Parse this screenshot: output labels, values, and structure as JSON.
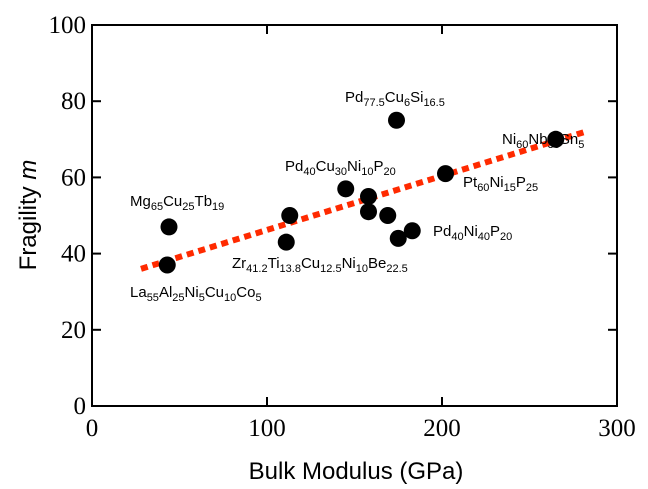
{
  "chart_data": {
    "type": "scatter",
    "title": "",
    "xlabel": "Bulk Modulus (GPa)",
    "ylabel": "Fragility m",
    "xlim": [
      0,
      300
    ],
    "ylim": [
      0,
      100
    ],
    "x_ticks": [
      "0",
      "100",
      "200",
      "300"
    ],
    "y_ticks": [
      "0",
      "20",
      "40",
      "60",
      "80",
      "100"
    ],
    "grid": false,
    "legend": false,
    "series": [
      {
        "marker_color": "#000000",
        "points": [
          {
            "x": 44,
            "y": 47
          },
          {
            "x": 43,
            "y": 37
          },
          {
            "x": 113,
            "y": 50
          },
          {
            "x": 111,
            "y": 43
          },
          {
            "x": 145,
            "y": 57
          },
          {
            "x": 158,
            "y": 55
          },
          {
            "x": 158,
            "y": 51
          },
          {
            "x": 169,
            "y": 50
          },
          {
            "x": 175,
            "y": 44
          },
          {
            "x": 183,
            "y": 46
          },
          {
            "x": 174,
            "y": 75
          },
          {
            "x": 202,
            "y": 61
          },
          {
            "x": 265,
            "y": 70
          }
        ]
      }
    ],
    "trendline": {
      "style": "dotted",
      "color": "#ff2a00",
      "x": [
        28,
        282
      ],
      "y": [
        36,
        72
      ]
    },
    "annotations": [
      {
        "parts": [
          [
            "Mg",
            0
          ],
          [
            "65",
            1
          ],
          [
            "Cu",
            0
          ],
          [
            "25",
            1
          ],
          [
            "Tb",
            0
          ],
          [
            "19",
            1
          ]
        ]
      },
      {
        "parts": [
          [
            "La",
            0
          ],
          [
            "55",
            1
          ],
          [
            "Al",
            0
          ],
          [
            "25",
            1
          ],
          [
            "Ni",
            0
          ],
          [
            "5",
            1
          ],
          [
            "Cu",
            0
          ],
          [
            "10",
            1
          ],
          [
            "Co",
            0
          ],
          [
            "5",
            1
          ]
        ]
      },
      {
        "parts": [
          [
            "Zr",
            0
          ],
          [
            "41.2",
            1
          ],
          [
            "Ti",
            0
          ],
          [
            "13.8",
            1
          ],
          [
            "Cu",
            0
          ],
          [
            "12.5",
            1
          ],
          [
            "Ni",
            0
          ],
          [
            "10",
            1
          ],
          [
            "Be",
            0
          ],
          [
            "22.5",
            1
          ]
        ]
      },
      {
        "parts": [
          [
            "Pd",
            0
          ],
          [
            "40",
            1
          ],
          [
            "Cu",
            0
          ],
          [
            "30",
            1
          ],
          [
            "Ni",
            0
          ],
          [
            "10",
            1
          ],
          [
            "P",
            0
          ],
          [
            "20",
            1
          ]
        ]
      },
      {
        "parts": [
          [
            "Pd",
            0
          ],
          [
            "77.5",
            1
          ],
          [
            "Cu",
            0
          ],
          [
            "6",
            1
          ],
          [
            "Si",
            0
          ],
          [
            "16.5",
            1
          ]
        ]
      },
      {
        "parts": [
          [
            "Pt",
            0
          ],
          [
            "60",
            1
          ],
          [
            "Ni",
            0
          ],
          [
            "15",
            1
          ],
          [
            "P",
            0
          ],
          [
            "25",
            1
          ]
        ]
      },
      {
        "parts": [
          [
            "Pd",
            0
          ],
          [
            "40",
            1
          ],
          [
            "Ni",
            0
          ],
          [
            "40",
            1
          ],
          [
            "P",
            0
          ],
          [
            "20",
            1
          ]
        ]
      },
      {
        "parts": [
          [
            "Ni",
            0
          ],
          [
            "60",
            1
          ],
          [
            "Nb",
            0
          ],
          [
            "35",
            1
          ],
          [
            "Sn",
            0
          ],
          [
            "5",
            1
          ]
        ]
      }
    ]
  }
}
